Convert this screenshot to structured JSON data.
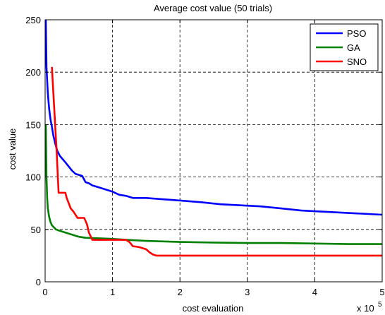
{
  "chart_data": {
    "type": "line",
    "title": "Average cost value (50 trials)",
    "xlabel": "cost evaluation",
    "ylabel": "cost value",
    "x_multiplier_label": "x 10",
    "x_multiplier_exponent": "5",
    "xlim": [
      0,
      5
    ],
    "ylim": [
      0,
      250
    ],
    "xticks": [
      0,
      1,
      2,
      3,
      4,
      5
    ],
    "xtick_labels": [
      "0",
      "1",
      "2",
      "3",
      "4",
      "5"
    ],
    "yticks": [
      0,
      50,
      100,
      150,
      200,
      250
    ],
    "ytick_labels": [
      "0",
      "50",
      "100",
      "150",
      "200",
      "250"
    ],
    "grid": true,
    "legend_position": "top-right",
    "series": [
      {
        "name": "PSO",
        "color": "#0000ff",
        "x": [
          0.01,
          0.02,
          0.04,
          0.06,
          0.08,
          0.1,
          0.12,
          0.15,
          0.18,
          0.22,
          0.26,
          0.3,
          0.35,
          0.4,
          0.45,
          0.5,
          0.55,
          0.6,
          0.65,
          0.7,
          0.8,
          0.9,
          1.0,
          1.1,
          1.2,
          1.3,
          1.5,
          1.7,
          1.9,
          2.1,
          2.3,
          2.6,
          2.9,
          3.2,
          3.5,
          3.8,
          4.1,
          4.4,
          4.7,
          5.0
        ],
        "y": [
          250,
          205,
          180,
          165,
          155,
          148,
          140,
          132,
          125,
          120,
          117,
          114,
          110,
          106,
          103,
          102,
          101,
          95,
          94,
          92,
          90,
          88,
          86,
          83,
          82,
          80,
          80,
          79,
          78,
          77,
          76,
          74,
          73,
          72,
          70,
          68,
          67,
          66,
          65,
          64
        ]
      },
      {
        "name": "GA",
        "color": "#008000",
        "x": [
          0.01,
          0.02,
          0.03,
          0.04,
          0.06,
          0.08,
          0.1,
          0.13,
          0.16,
          0.2,
          0.25,
          0.3,
          0.4,
          0.5,
          0.6,
          0.8,
          1.0,
          1.2,
          1.5,
          2.0,
          2.5,
          3.0,
          3.5,
          4.0,
          4.5,
          5.0
        ],
        "y": [
          150,
          100,
          80,
          70,
          62,
          57,
          54,
          52,
          50,
          49,
          48,
          47,
          45,
          43,
          42,
          41.5,
          41,
          40,
          39,
          38,
          37.5,
          37,
          37,
          36.5,
          36,
          36
        ]
      },
      {
        "name": "SNO",
        "color": "#ff0000",
        "x": [
          0.1,
          0.17,
          0.2,
          0.3,
          0.32,
          0.38,
          0.42,
          0.48,
          0.52,
          0.58,
          0.62,
          0.65,
          0.7,
          1.0,
          1.2,
          1.25,
          1.3,
          1.4,
          1.5,
          1.55,
          1.6,
          1.65,
          1.7,
          2.0,
          2.5,
          3.0,
          3.5,
          4.0,
          4.5,
          5.0
        ],
        "y": [
          205,
          125,
          85,
          85,
          80,
          70,
          67,
          61,
          61,
          61,
          55,
          47,
          40,
          40,
          40,
          38,
          34,
          33,
          31,
          28,
          26,
          25,
          25,
          25,
          25,
          25,
          25,
          25,
          25,
          25
        ]
      }
    ]
  }
}
